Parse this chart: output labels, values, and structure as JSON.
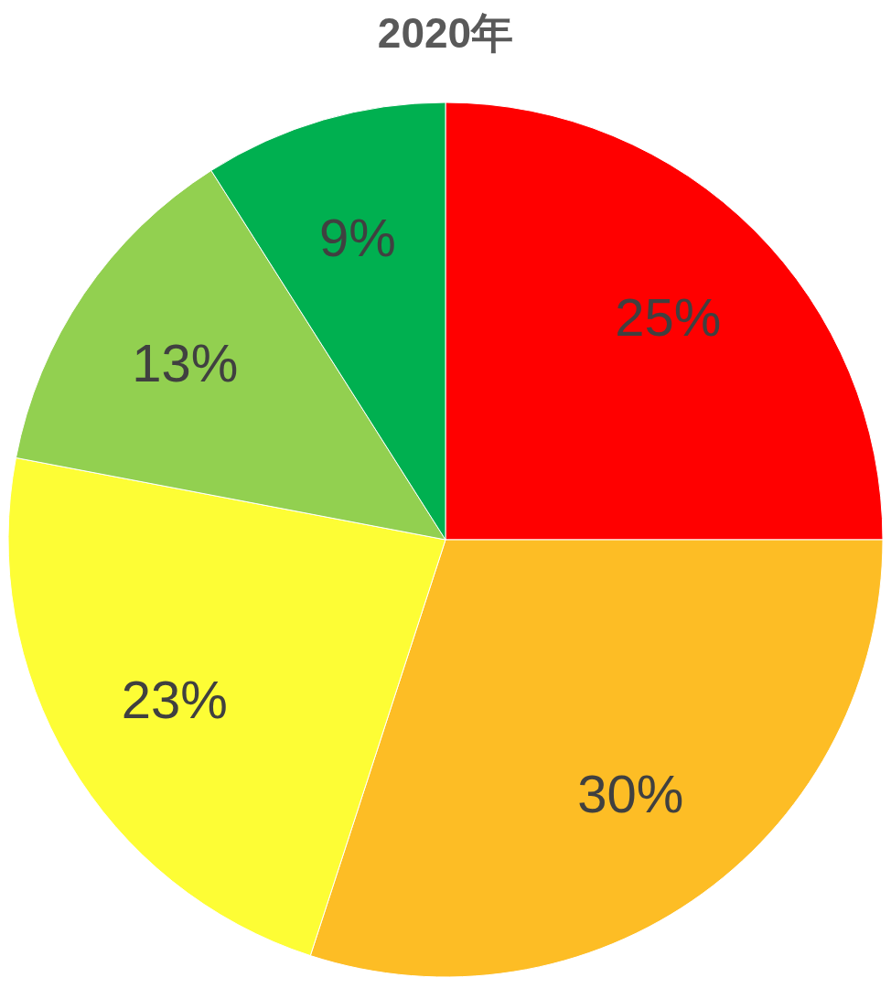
{
  "chart_data": {
    "type": "pie",
    "title": "2020年",
    "categories": [
      null,
      null,
      null,
      null,
      null
    ],
    "values": [
      25,
      30,
      23,
      13,
      9
    ],
    "value_labels": [
      "25%",
      "30%",
      "23%",
      "13%",
      "9%"
    ],
    "colors": [
      "#ff0000",
      "#fdbd25",
      "#fdfd35",
      "#92d050",
      "#00b050"
    ]
  }
}
